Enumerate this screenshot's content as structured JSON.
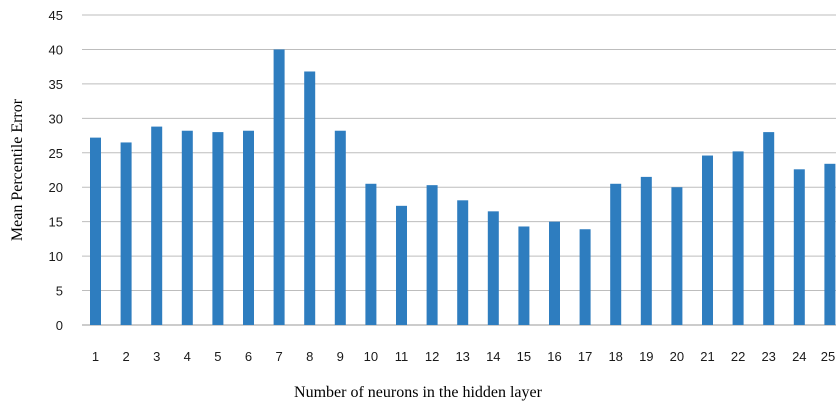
{
  "chart_data": {
    "type": "bar",
    "title": "",
    "xlabel": "Number of neurons in the hidden layer",
    "ylabel": "Mean Percentile Error",
    "categories": [
      "1",
      "2",
      "3",
      "4",
      "5",
      "6",
      "7",
      "8",
      "9",
      "10",
      "11",
      "12",
      "13",
      "14",
      "15",
      "16",
      "17",
      "18",
      "19",
      "20",
      "21",
      "22",
      "23",
      "24",
      "25"
    ],
    "values": [
      27.2,
      26.5,
      28.8,
      28.2,
      28.0,
      28.2,
      40.0,
      36.8,
      28.2,
      20.5,
      17.3,
      20.3,
      18.1,
      16.5,
      14.3,
      15.0,
      13.9,
      20.5,
      21.5,
      20.0,
      24.6,
      25.2,
      28.0,
      22.6,
      23.4
    ],
    "ylim": [
      0,
      45
    ],
    "yticks": [
      0,
      5,
      10,
      15,
      20,
      25,
      30,
      35,
      40,
      45
    ],
    "grid": true,
    "legend": "none",
    "bar_color": "#2e7dbf"
  }
}
